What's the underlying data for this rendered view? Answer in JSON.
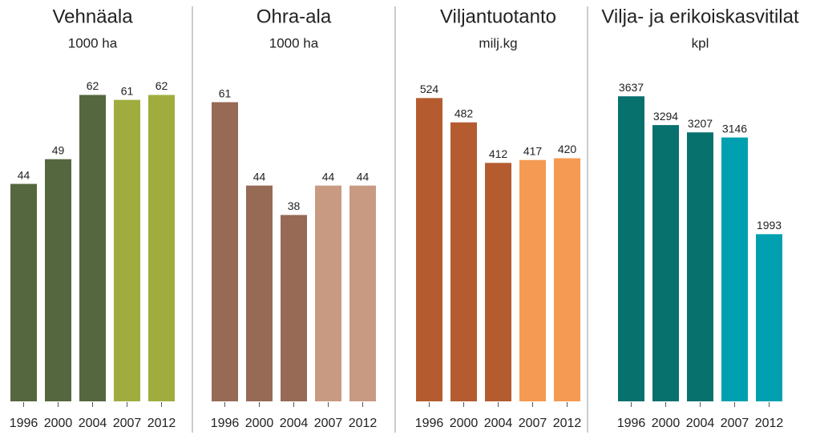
{
  "chart_data": [
    {
      "type": "bar",
      "title": "Vehnäala",
      "subtitle": "1000 ha",
      "categories": [
        "1996",
        "2000",
        "2004",
        "2007",
        "2012"
      ],
      "values": [
        44,
        49,
        62,
        61,
        62
      ],
      "colors": [
        "#55673f",
        "#55673f",
        "#55673f",
        "#a0ad3e",
        "#a0ad3e"
      ],
      "ylim": [
        0,
        65
      ]
    },
    {
      "type": "bar",
      "title": "Ohra-ala",
      "subtitle": "1000 ha",
      "categories": [
        "1996",
        "2000",
        "2004",
        "2007",
        "2012"
      ],
      "values": [
        61,
        44,
        38,
        44,
        44
      ],
      "colors": [
        "#966a55",
        "#966a55",
        "#966a55",
        "#c99a82",
        "#c99a82"
      ],
      "ylim": [
        0,
        65.5
      ]
    },
    {
      "type": "bar",
      "title": "Viljantuotanto",
      "subtitle": "milj.kg",
      "categories": [
        "1996",
        "2000",
        "2004",
        "2007",
        "2012"
      ],
      "values": [
        524,
        482,
        412,
        417,
        420
      ],
      "colors": [
        "#b45c30",
        "#b45c30",
        "#b45c30",
        "#f59a52",
        "#f59a52"
      ],
      "ylim": [
        0,
        555
      ]
    },
    {
      "type": "bar",
      "title": "Vilja- ja erikoiskasvitilat",
      "subtitle": "kpl",
      "categories": [
        "1996",
        "2000",
        "2004",
        "2007",
        "2012"
      ],
      "values": [
        3637,
        3294,
        3207,
        3146,
        1993
      ],
      "colors": [
        "#07716e",
        "#07716e",
        "#07716e",
        "#00a0b0",
        "#00a0b0"
      ],
      "ylim": [
        0,
        3830
      ]
    }
  ]
}
